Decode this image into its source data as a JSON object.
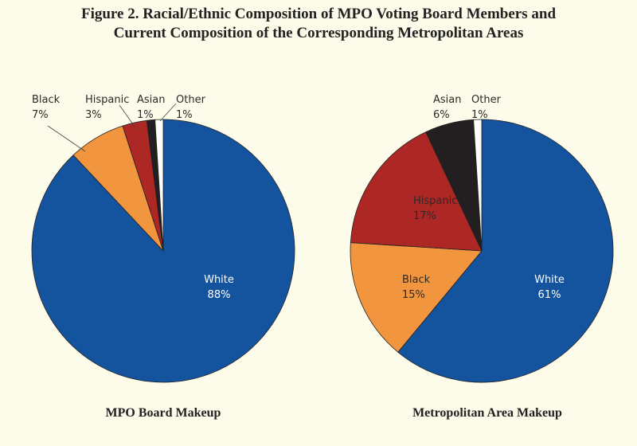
{
  "title_line1": "Figure 2. Racial/Ethnic Composition of MPO Voting Board Members and",
  "title_line2": "Current Composition of the Corresponding Metropolitan Areas",
  "colors": {
    "White": "#14539e",
    "Black": "#f1953f",
    "Hispanic": "#ad2724",
    "Asian": "#231f20",
    "Other": "#ffffff"
  },
  "chart_data": [
    {
      "type": "pie",
      "title": "MPO Board Makeup",
      "categories": [
        "White",
        "Black",
        "Hispanic",
        "Asian",
        "Other"
      ],
      "values": [
        88,
        7,
        3,
        1,
        1
      ],
      "labels": [
        "88%",
        "7%",
        "3%",
        "1%",
        "1%"
      ]
    },
    {
      "type": "pie",
      "title": "Metropolitan Area Makeup",
      "categories": [
        "White",
        "Black",
        "Hispanic",
        "Asian",
        "Other"
      ],
      "values": [
        61,
        15,
        17,
        6,
        1
      ],
      "labels": [
        "61%",
        "15%",
        "17%",
        "6%",
        "1%"
      ]
    }
  ]
}
